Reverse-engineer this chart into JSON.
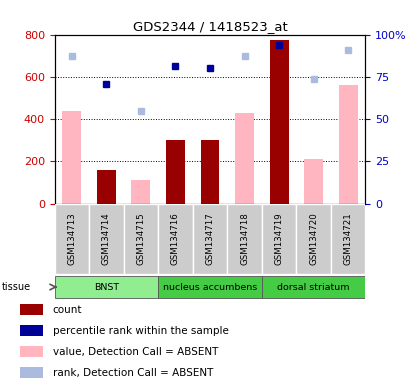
{
  "title": "GDS2344 / 1418523_at",
  "samples": [
    "GSM134713",
    "GSM134714",
    "GSM134715",
    "GSM134716",
    "GSM134717",
    "GSM134718",
    "GSM134719",
    "GSM134720",
    "GSM134721"
  ],
  "count_values": [
    null,
    160,
    null,
    300,
    300,
    null,
    775,
    null,
    null
  ],
  "count_absent_values": [
    440,
    null,
    110,
    null,
    null,
    430,
    null,
    210,
    560
  ],
  "rank_present_values": [
    null,
    565,
    null,
    650,
    640,
    null,
    750,
    null,
    null
  ],
  "rank_absent_values": [
    700,
    null,
    440,
    null,
    null,
    700,
    null,
    590,
    725
  ],
  "tissue_groups": [
    {
      "label": "BNST",
      "start": 0,
      "end": 3,
      "color": "#90EE90"
    },
    {
      "label": "nucleus accumbens",
      "start": 3,
      "end": 6,
      "color": "#44CC44"
    },
    {
      "label": "dorsal striatum",
      "start": 6,
      "end": 9,
      "color": "#44CC44"
    }
  ],
  "ylim_left": [
    0,
    800
  ],
  "ylim_right": [
    0,
    100
  ],
  "yticks_left": [
    0,
    200,
    400,
    600,
    800
  ],
  "yticks_right": [
    0,
    25,
    50,
    75,
    100
  ],
  "ytick_labels_right": [
    "0",
    "25",
    "50",
    "75",
    "100%"
  ],
  "bar_width": 0.55,
  "count_color": "#990000",
  "absent_bar_color": "#FFB6C1",
  "rank_present_color": "#000099",
  "rank_absent_color": "#AABBDD",
  "legend_items": [
    {
      "color": "#990000",
      "label": "count"
    },
    {
      "color": "#000099",
      "label": "percentile rank within the sample"
    },
    {
      "color": "#FFB6C1",
      "label": "value, Detection Call = ABSENT"
    },
    {
      "color": "#AABBDD",
      "label": "rank, Detection Call = ABSENT"
    }
  ],
  "tick_label_color_left": "#CC0000",
  "tick_label_color_right": "#0000CC",
  "sample_box_color": "#CCCCCC",
  "tissue_label": "tissue"
}
